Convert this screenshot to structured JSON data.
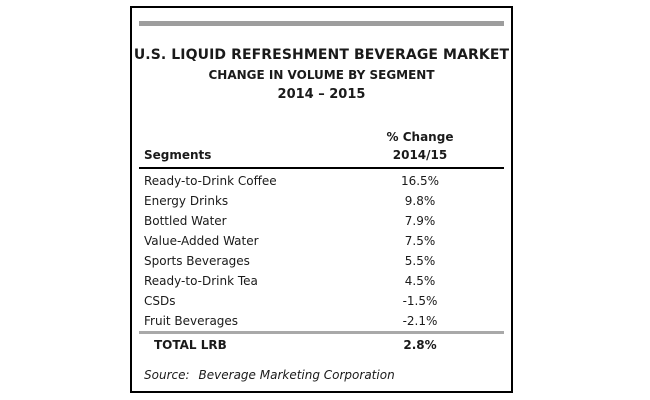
{
  "window": {
    "background_color": "#ffffff",
    "border_color": "#000000",
    "top_bar_color": "#9d9d9d",
    "total_rule_color": "#a9a9a9"
  },
  "title": {
    "line1": "U.S. LIQUID REFRESHMENT BEVERAGE MARKET",
    "line2": "CHANGE IN VOLUME BY SEGMENT",
    "line3": "2014 – 2015"
  },
  "table": {
    "segments_header": "Segments",
    "change_header_line1": "% Change",
    "change_header_line2": "2014/15",
    "rows": [
      {
        "segment": "Ready-to-Drink Coffee",
        "change": "16.5%"
      },
      {
        "segment": "Energy Drinks",
        "change": "9.8%"
      },
      {
        "segment": "Bottled Water",
        "change": "7.9%"
      },
      {
        "segment": "Value-Added Water",
        "change": "7.5%"
      },
      {
        "segment": "Sports Beverages",
        "change": "5.5%"
      },
      {
        "segment": "Ready-to-Drink Tea",
        "change": "4.5%"
      },
      {
        "segment": "CSDs",
        "change": "-1.5%"
      },
      {
        "segment": "Fruit Beverages",
        "change": "-2.1%"
      }
    ],
    "total": {
      "label": "TOTAL LRB",
      "value": "2.8%"
    }
  },
  "source": {
    "label": "Source:",
    "text": "Beverage Marketing Corporation"
  },
  "chart_data": {
    "type": "table",
    "title": "U.S. LIQUID REFRESHMENT BEVERAGE MARKET",
    "subtitle": "CHANGE IN VOLUME BY SEGMENT",
    "period": "2014 – 2015",
    "columns": [
      "Segments",
      "% Change 2014/15"
    ],
    "categories": [
      "Ready-to-Drink Coffee",
      "Energy Drinks",
      "Bottled Water",
      "Value-Added Water",
      "Sports Beverages",
      "Ready-to-Drink Tea",
      "CSDs",
      "Fruit Beverages"
    ],
    "values": [
      16.5,
      9.8,
      7.9,
      7.5,
      5.5,
      4.5,
      -1.5,
      -2.1
    ],
    "total": {
      "label": "TOTAL LRB",
      "value": 2.8
    },
    "source": "Source: Beverage Marketing Corporation"
  }
}
